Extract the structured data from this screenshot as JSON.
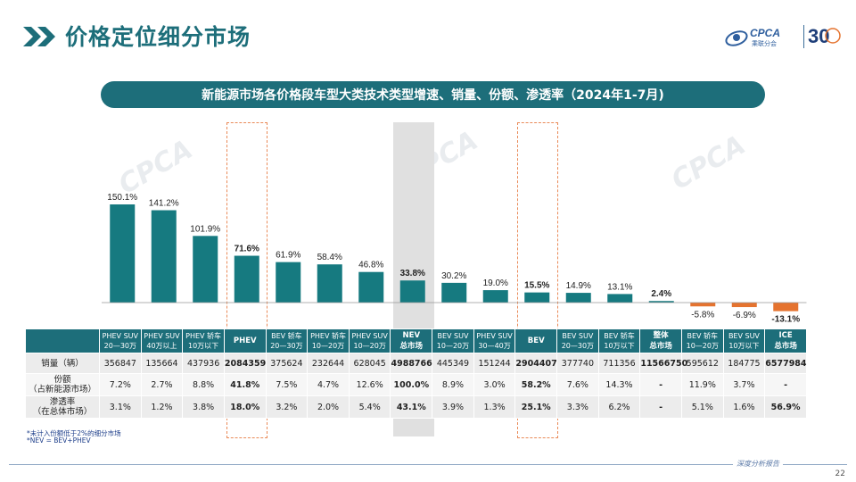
{
  "header": {
    "title": "价格定位细分市场",
    "logo_text": "CPCA",
    "logo_sub": "乘联分会",
    "anniversary": "30"
  },
  "banner_title": "新能源市场各价格段车型大类技术类型增速、销量、份额、渗透率（2024年1-7月)",
  "chart_data": {
    "type": "bar",
    "title": "新能源市场各价格段车型大类技术类型增速、销量、份额、渗透率（2024年1-7月)",
    "categories": [
      "PHEV SUV 20—30万",
      "PHEV SUV 40万以上",
      "PHEV 轿车 10万以下",
      "PHEV",
      "BEV 轿车 20—30万",
      "PHEV 轿车 10—20万",
      "PHEV SUV 10—20万",
      "NEV 总市场",
      "BEV SUV 10—20万",
      "PHEV SUV 30—40万",
      "BEV",
      "BEV SUV 20—30万",
      "BEV 轿车 10万以下",
      "整体 总市场",
      "BEV 轿车 10—20万",
      "BEV SUV 10万以下",
      "ICE 总市场"
    ],
    "values": [
      150.1,
      141.2,
      101.9,
      71.6,
      61.9,
      58.4,
      46.8,
      33.8,
      30.2,
      19.0,
      15.5,
      14.9,
      13.1,
      2.4,
      -5.8,
      -6.9,
      -13.1
    ],
    "value_labels": [
      "150.1%",
      "141.2%",
      "101.9%",
      "71.6%",
      "61.9%",
      "58.4%",
      "46.8%",
      "33.8%",
      "30.2%",
      "19.0%",
      "15.5%",
      "14.9%",
      "13.1%",
      "2.4%",
      "-5.8%",
      "-6.9%",
      "-13.1%"
    ],
    "bold_labels": [
      false,
      false,
      false,
      true,
      false,
      false,
      false,
      true,
      false,
      false,
      true,
      false,
      false,
      true,
      false,
      false,
      true
    ],
    "colors": {
      "positive": "#167a80",
      "negative": "#e5732f"
    },
    "ylim": [
      -13.1,
      150.1
    ],
    "grid": false,
    "highlighted_columns": {
      "boxed": [
        3,
        10
      ],
      "shaded": [
        7
      ]
    }
  },
  "table": {
    "headers": [
      {
        "l1": "PHEV SUV",
        "l2": "20—30万",
        "bold": false
      },
      {
        "l1": "PHEV SUV",
        "l2": "40万以上",
        "bold": false
      },
      {
        "l1": "PHEV 轿车",
        "l2": "10万以下",
        "bold": false
      },
      {
        "l1": "PHEV",
        "l2": "",
        "bold": true
      },
      {
        "l1": "BEV 轿车",
        "l2": "20—30万",
        "bold": false
      },
      {
        "l1": "PHEV 轿车",
        "l2": "10—20万",
        "bold": false
      },
      {
        "l1": "PHEV SUV",
        "l2": "10—20万",
        "bold": false
      },
      {
        "l1": "NEV",
        "l2": "总市场",
        "bold": true
      },
      {
        "l1": "BEV SUV",
        "l2": "10—20万",
        "bold": false
      },
      {
        "l1": "PHEV SUV",
        "l2": "30—40万",
        "bold": false
      },
      {
        "l1": "BEV",
        "l2": "",
        "bold": true
      },
      {
        "l1": "BEV SUV",
        "l2": "20—30万",
        "bold": false
      },
      {
        "l1": "BEV 轿车",
        "l2": "10万以下",
        "bold": false
      },
      {
        "l1": "整体",
        "l2": "总市场",
        "bold": true
      },
      {
        "l1": "BEV 轿车",
        "l2": "10—20万",
        "bold": false
      },
      {
        "l1": "BEV SUV",
        "l2": "10万以下",
        "bold": false
      },
      {
        "l1": "ICE",
        "l2": "总市场",
        "bold": true
      }
    ],
    "rows": [
      {
        "label_l1": "销量（辆）",
        "label_l2": "",
        "values": [
          "356847",
          "135664",
          "437936",
          "2084359",
          "375624",
          "232644",
          "628045",
          "4988766",
          "445349",
          "151244",
          "2904407",
          "377740",
          "711356",
          "11566750",
          "595612",
          "184775",
          "6577984"
        ]
      },
      {
        "label_l1": "份额",
        "label_l2": "（占新能源市场）",
        "values": [
          "7.2%",
          "2.7%",
          "8.8%",
          "41.8%",
          "7.5%",
          "4.7%",
          "12.6%",
          "100.0%",
          "8.9%",
          "3.0%",
          "58.2%",
          "7.6%",
          "14.3%",
          "-",
          "11.9%",
          "3.7%",
          "-"
        ]
      },
      {
        "label_l1": "渗透率",
        "label_l2": "（在总体市场）",
        "values": [
          "3.1%",
          "1.2%",
          "3.8%",
          "18.0%",
          "3.2%",
          "2.0%",
          "5.4%",
          "43.1%",
          "3.9%",
          "1.3%",
          "25.1%",
          "3.3%",
          "6.2%",
          "-",
          "5.1%",
          "1.6%",
          "56.9%"
        ]
      }
    ],
    "bold_columns": [
      3,
      7,
      10,
      13,
      16
    ]
  },
  "notes": {
    "note1": "*未计入份额低于2%的细分市场",
    "note2": "*NEV = BEV+PHEV"
  },
  "footer": {
    "text": "深度分析报告",
    "page_number": "22"
  },
  "watermark": "CPCA"
}
